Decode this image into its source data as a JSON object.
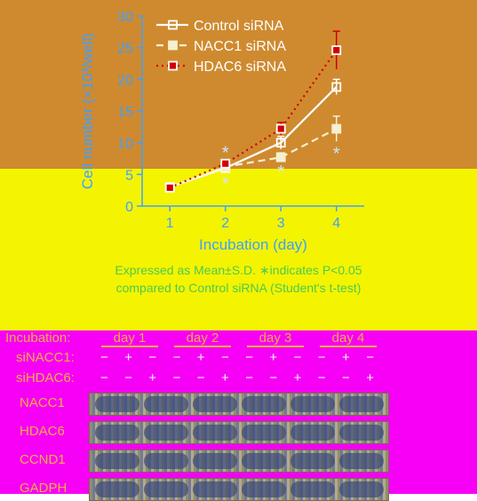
{
  "colors": {
    "band_top": "#cf8a2f",
    "band_mid": "#f4f400",
    "band_bot": "#f600f6",
    "chart_text": "#3ea0ff",
    "note_text": "#4fc94f",
    "blot_text": "#f0b040",
    "series_control": "#ffffff",
    "series_nacc1": "#f6f0d0",
    "series_hdac6": "#d00000"
  },
  "chart_data": {
    "type": "line",
    "x": [
      1,
      2,
      3,
      4
    ],
    "xlabel": "Incubation (day)",
    "ylabel": "Cell number (×10³/well)",
    "ylim": [
      0,
      30
    ],
    "yticks": [
      0,
      5,
      10,
      15,
      20,
      25,
      30
    ],
    "xticks": [
      "1",
      "2",
      "3",
      "4"
    ],
    "legend_position": "top-left",
    "grid": false,
    "series": [
      {
        "name": "Control siRNA",
        "style": "solid",
        "marker": "open-square",
        "values": [
          3.0,
          6.0,
          10.0,
          18.8
        ],
        "errors": [
          0.3,
          0.4,
          1.0,
          1.2
        ]
      },
      {
        "name": "NACC1 siRNA",
        "style": "dashed",
        "marker": "filled-square",
        "values": [
          3.0,
          6.2,
          7.7,
          12.2
        ],
        "errors": [
          0.3,
          0.4,
          0.7,
          2.0
        ]
      },
      {
        "name": "HDAC6 siRNA",
        "style": "dotted",
        "marker": "red-square",
        "values": [
          2.9,
          6.7,
          12.2,
          24.6
        ],
        "errors": [
          0.3,
          0.5,
          1.0,
          3.0
        ]
      }
    ],
    "annotations": [
      {
        "x": 2,
        "y": 8.6,
        "text": "*"
      },
      {
        "x": 2,
        "y": 3.7,
        "text": "*"
      },
      {
        "x": 3,
        "y": 5.6,
        "text": "*"
      },
      {
        "x": 4,
        "y": 8.5,
        "text": "*"
      }
    ]
  },
  "note": {
    "line1": "Expressed as Mean±S.D. ∗indicates P<0.05",
    "line2": "compared to Control siRNA (Student's t-test)"
  },
  "blot": {
    "incubation_label": "Incubation:",
    "days": [
      "day 1",
      "day 2",
      "day 3",
      "day 4"
    ],
    "sinacc1_label": "siNACC1:",
    "sinacc1_signs": [
      "−",
      "+",
      "−",
      "−",
      "+",
      "−",
      "−",
      "+",
      "−",
      "−",
      "+",
      "−"
    ],
    "sihdac6_label": "siHDAC6:",
    "sihdac6_signs": [
      "−",
      "−",
      "+",
      "−",
      "−",
      "+",
      "−",
      "−",
      "+",
      "−",
      "−",
      "+"
    ],
    "rows": [
      "NACC1",
      "HDAC6",
      "CCND1",
      "GADPH"
    ]
  }
}
